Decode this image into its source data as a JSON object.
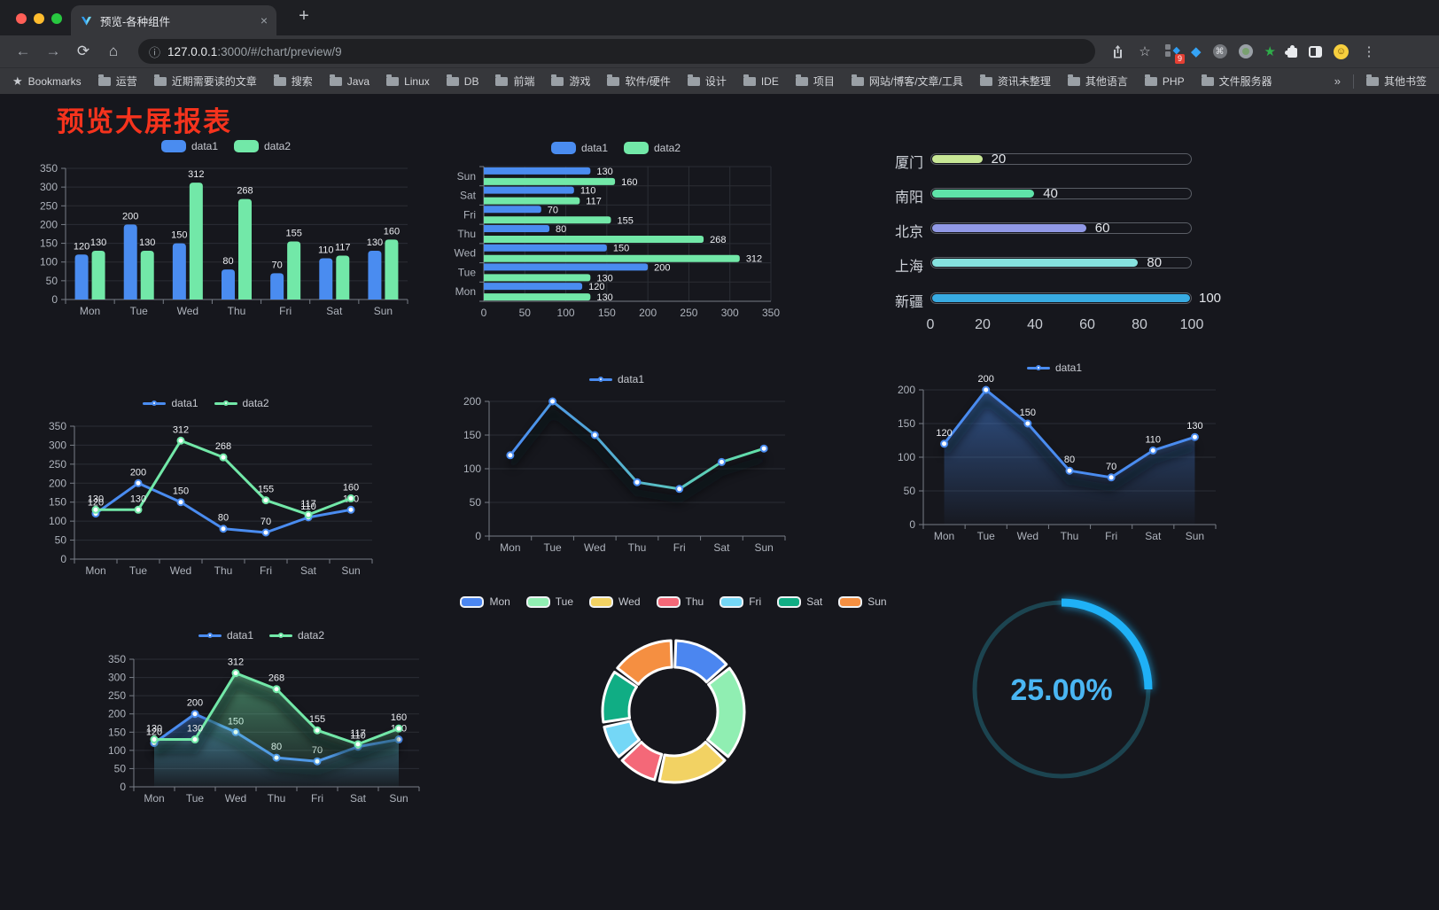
{
  "browser": {
    "traffic_lights": {
      "close": "#ff5f57",
      "minimize": "#febc2e",
      "zoom": "#28c840"
    },
    "tab": {
      "title": "预览-各种组件",
      "close": "×"
    },
    "new_tab": "+",
    "icons": {
      "back": "←",
      "forward": "→",
      "reload": "⟳",
      "home": "⌂",
      "info": "ⓘ",
      "share": "⇧",
      "star": "☆",
      "menu": "⋮",
      "command": "⌘",
      "green_star": "★",
      "gem": "◆",
      "emoji_face": "☺",
      "grid_diamond": "◆"
    },
    "url_host": "127.0.0.1",
    "url_rest": ":3000/#/chart/preview/9",
    "extension_badge": "9",
    "bookmarks_label": "Bookmarks",
    "bookmarks": [
      "运营",
      "近期需要读的文章",
      "搜索",
      "Java",
      "Linux",
      "DB",
      "前端",
      "游戏",
      "软件/硬件",
      "设计",
      "IDE",
      "项目",
      "网站/博客/文章/工具",
      "资讯未整理",
      "其他语言",
      "PHP",
      "文件服务器"
    ],
    "bookmarks_overflow": "»",
    "other_bookmarks": "其他书签"
  },
  "page": {
    "title": "预览大屏报表",
    "title_color": "#f5331d",
    "background": "#16171d"
  },
  "chart_data": [
    {
      "id": "bar-vertical",
      "type": "bar",
      "categories": [
        "Mon",
        "Tue",
        "Wed",
        "Thu",
        "Fri",
        "Sat",
        "Sun"
      ],
      "series": [
        {
          "name": "data1",
          "color": "#4a8cf0",
          "values": [
            120,
            200,
            150,
            80,
            70,
            110,
            130
          ]
        },
        {
          "name": "data2",
          "color": "#72e8a8",
          "values": [
            130,
            130,
            312,
            268,
            155,
            117,
            160
          ]
        }
      ],
      "ylim": [
        0,
        350
      ],
      "yticks": [
        0,
        50,
        100,
        150,
        200,
        250,
        300,
        350
      ],
      "show_labels": true,
      "grid": true,
      "legend_position": "top"
    },
    {
      "id": "bar-horizontal",
      "type": "bar-horizontal",
      "categories": [
        "Mon",
        "Tue",
        "Wed",
        "Thu",
        "Fri",
        "Sat",
        "Sun"
      ],
      "series": [
        {
          "name": "data1",
          "color": "#4a8cf0",
          "values": [
            120,
            200,
            150,
            80,
            70,
            110,
            130
          ]
        },
        {
          "name": "data2",
          "color": "#72e8a8",
          "values": [
            130,
            130,
            312,
            268,
            155,
            117,
            160
          ]
        }
      ],
      "xlim": [
        0,
        350
      ],
      "xticks": [
        0,
        50,
        100,
        150,
        200,
        250,
        300,
        350
      ],
      "show_labels": true,
      "grid": true,
      "legend_position": "top"
    },
    {
      "id": "progress",
      "type": "progress",
      "max": 100,
      "ticks": [
        0,
        20,
        40,
        60,
        80,
        100
      ],
      "rows": [
        {
          "label": "厦门",
          "value": 20,
          "color": "#c8e796"
        },
        {
          "label": "南阳",
          "value": 40,
          "color": "#5fe3a9"
        },
        {
          "label": "北京",
          "value": 60,
          "color": "#9199e6"
        },
        {
          "label": "上海",
          "value": 80,
          "color": "#86e2df"
        },
        {
          "label": "新疆",
          "value": 100,
          "color": "#38abe2"
        }
      ]
    },
    {
      "id": "line-two",
      "type": "line",
      "categories": [
        "Mon",
        "Tue",
        "Wed",
        "Thu",
        "Fri",
        "Sat",
        "Sun"
      ],
      "series": [
        {
          "name": "data1",
          "color": "#4a8cf0",
          "values": [
            120,
            200,
            150,
            80,
            70,
            110,
            130
          ]
        },
        {
          "name": "data2",
          "color": "#72e8a8",
          "values": [
            130,
            130,
            312,
            268,
            155,
            117,
            160
          ]
        }
      ],
      "ylim": [
        0,
        350
      ],
      "yticks": [
        0,
        50,
        100,
        150,
        200,
        250,
        300,
        350
      ],
      "show_labels": true,
      "glow": false,
      "legend_position": "top"
    },
    {
      "id": "line-gradient",
      "type": "line",
      "categories": [
        "Mon",
        "Tue",
        "Wed",
        "Thu",
        "Fri",
        "Sat",
        "Sun"
      ],
      "series": [
        {
          "name": "data1",
          "color": "#4a8cf0",
          "color_start": "#4a8cf0",
          "color_end": "#63e2a6",
          "values": [
            120,
            200,
            150,
            80,
            70,
            110,
            130
          ]
        }
      ],
      "ylim": [
        0,
        200
      ],
      "yticks": [
        0,
        50,
        100,
        150,
        200
      ],
      "show_labels": false,
      "glow": true,
      "gradient_line": true,
      "legend_position": "top"
    },
    {
      "id": "area-single",
      "type": "area",
      "categories": [
        "Mon",
        "Tue",
        "Wed",
        "Thu",
        "Fri",
        "Sat",
        "Sun"
      ],
      "series": [
        {
          "name": "data1",
          "color": "#4a8cf0",
          "values": [
            120,
            200,
            150,
            80,
            70,
            110,
            130
          ]
        }
      ],
      "ylim": [
        0,
        200
      ],
      "yticks": [
        0,
        50,
        100,
        150,
        200
      ],
      "show_labels": true,
      "glow": true,
      "legend_position": "top"
    },
    {
      "id": "area-two",
      "type": "area",
      "categories": [
        "Mon",
        "Tue",
        "Wed",
        "Thu",
        "Fri",
        "Sat",
        "Sun"
      ],
      "series": [
        {
          "name": "data1",
          "color": "#4a8cf0",
          "values": [
            120,
            200,
            150,
            80,
            70,
            110,
            130
          ]
        },
        {
          "name": "data2",
          "color": "#72e8a8",
          "values": [
            130,
            130,
            312,
            268,
            155,
            117,
            160
          ]
        }
      ],
      "ylim": [
        0,
        350
      ],
      "yticks": [
        0,
        50,
        100,
        150,
        200,
        250,
        300,
        350
      ],
      "show_labels": true,
      "glow": true,
      "legend_position": "top"
    },
    {
      "id": "donut",
      "type": "pie",
      "categories": [
        "Mon",
        "Tue",
        "Wed",
        "Thu",
        "Fri",
        "Sat",
        "Sun"
      ],
      "values": [
        120,
        200,
        150,
        80,
        70,
        110,
        130
      ],
      "colors": [
        "#4b86f0",
        "#90eeb2",
        "#f2d263",
        "#f46878",
        "#74d7f6",
        "#10ad84",
        "#f58f41"
      ],
      "legend_position": "top"
    },
    {
      "id": "gauge",
      "type": "gauge",
      "value": 25,
      "max": 100,
      "label": "25.00%",
      "color": "#1fb1f7",
      "track_color": "#1c4450",
      "text_color": "#4ab6f3"
    }
  ]
}
